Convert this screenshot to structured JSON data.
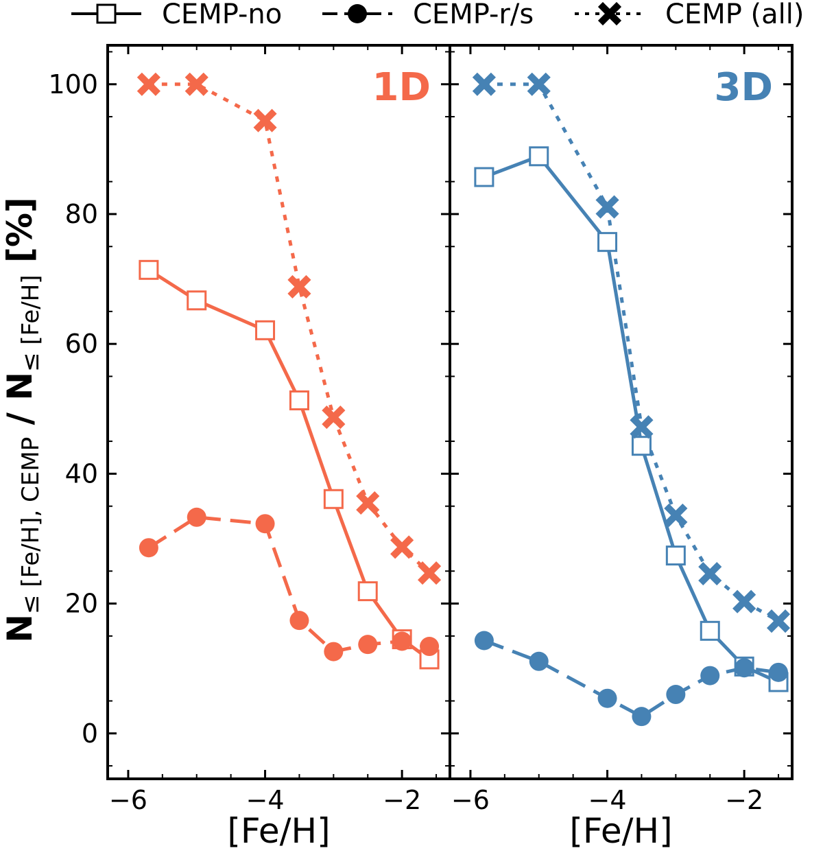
{
  "chart_data": [
    {
      "type": "line",
      "panel_label": "1D",
      "panel_label_color": "#f4694a",
      "xlabel": "[Fe/H]",
      "ylabel_main": "N",
      "ylabel_num_sub": "≤ [Fe/H], CEMP",
      "ylabel_slash": " / N",
      "ylabel_den_sub": "≤ [Fe/H]",
      "ylabel_unit": " [%]",
      "xlim": [
        -6.3,
        -1.3
      ],
      "ylim": [
        -7,
        106
      ],
      "x_ticks": [
        -6,
        -4,
        -2
      ],
      "x_tick_labels": [
        "−6",
        "−4",
        "−2"
      ],
      "y_ticks": [
        0,
        20,
        40,
        60,
        80,
        100
      ],
      "y_tick_labels": [
        "0",
        "20",
        "40",
        "60",
        "80",
        "100"
      ],
      "color": "#f4694a",
      "series": [
        {
          "name": "CEMP-no",
          "style": "solid",
          "marker": "open-square",
          "x": [
            -5.7,
            -5.0,
            -4.0,
            -3.5,
            -3.0,
            -2.5,
            -2.0,
            -1.6
          ],
          "y": [
            71.4,
            66.7,
            62.1,
            51.3,
            36.1,
            21.9,
            14.5,
            11.4
          ]
        },
        {
          "name": "CEMP-r/s",
          "style": "dashed",
          "marker": "filled-circle",
          "x": [
            -5.7,
            -5.0,
            -4.0,
            -3.5,
            -3.0,
            -2.5,
            -2.0,
            -1.6
          ],
          "y": [
            28.6,
            33.3,
            32.3,
            17.4,
            12.6,
            13.7,
            14.2,
            13.4
          ]
        },
        {
          "name": "CEMP (all)",
          "style": "dotted",
          "marker": "x",
          "x": [
            -5.7,
            -5.0,
            -4.0,
            -3.5,
            -3.0,
            -2.5,
            -2.0,
            -1.6
          ],
          "y": [
            100,
            100,
            94.4,
            68.8,
            48.7,
            35.5,
            28.7,
            24.7
          ]
        }
      ]
    },
    {
      "type": "line",
      "panel_label": "3D",
      "panel_label_color": "#4682b4",
      "xlabel": "[Fe/H]",
      "xlim": [
        -6.3,
        -1.3
      ],
      "ylim": [
        -7,
        106
      ],
      "x_ticks": [
        -6,
        -4,
        -2
      ],
      "x_tick_labels": [
        "−6",
        "−4",
        "−2"
      ],
      "y_ticks": [
        0,
        20,
        40,
        60,
        80,
        100
      ],
      "color": "#4682b4",
      "series": [
        {
          "name": "CEMP-no",
          "style": "solid",
          "marker": "open-square",
          "x": [
            -5.8,
            -5.0,
            -4.0,
            -3.5,
            -3.0,
            -2.5,
            -2.0,
            -1.5
          ],
          "y": [
            85.7,
            88.9,
            75.7,
            44.3,
            27.4,
            15.8,
            10.3,
            7.9
          ]
        },
        {
          "name": "CEMP-r/s",
          "style": "dashed",
          "marker": "filled-circle",
          "x": [
            -5.8,
            -5.0,
            -4.0,
            -3.5,
            -3.0,
            -2.5,
            -2.0,
            -1.5
          ],
          "y": [
            14.3,
            11.1,
            5.4,
            2.6,
            6.0,
            8.9,
            10.1,
            9.4
          ]
        },
        {
          "name": "CEMP (all)",
          "style": "dotted",
          "marker": "x",
          "x": [
            -5.8,
            -5.0,
            -4.0,
            -3.5,
            -3.0,
            -2.5,
            -2.0,
            -1.5
          ],
          "y": [
            100,
            100,
            81.1,
            47.2,
            33.6,
            24.6,
            20.3,
            17.3
          ]
        }
      ]
    }
  ],
  "legend": {
    "placement": "top",
    "entries": [
      {
        "label": "CEMP-no",
        "style": "solid",
        "marker": "open-square"
      },
      {
        "label": "CEMP-r/s",
        "style": "dashed",
        "marker": "filled-circle"
      },
      {
        "label": "CEMP (all)",
        "style": "dotted",
        "marker": "x"
      }
    ]
  }
}
